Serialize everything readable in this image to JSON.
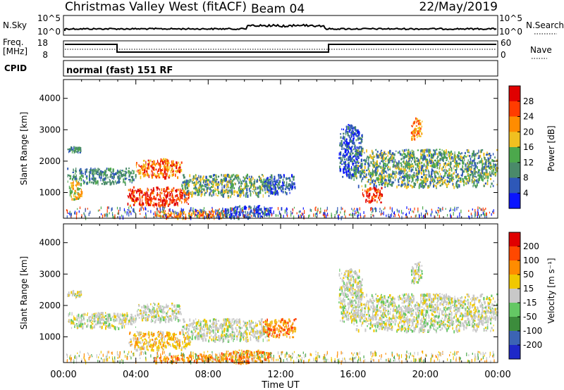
{
  "header": {
    "station": "Christmas Valley West (fitACF)",
    "beam": "Beam 04",
    "date": "22/May/2019"
  },
  "noise_panel": {
    "left_label": "N.Sky",
    "left_ticks": [
      "10^5",
      "10^0"
    ],
    "right_label": "N.Search",
    "right_ticks": [
      "10^5",
      "10^0"
    ]
  },
  "freq_panel": {
    "left_label_1": "Freq.",
    "left_label_2": "[MHz]",
    "left_ticks": [
      "18",
      "8"
    ],
    "right_label": "Nave",
    "right_ticks": [
      "60",
      "0"
    ]
  },
  "cpid": {
    "label": "CPID",
    "mode": "normal (fast) 151 RF"
  },
  "x_axis": {
    "label": "Time UT",
    "ticks": [
      "00:00",
      "04:00",
      "08:00",
      "12:00",
      "16:00",
      "20:00",
      "00:00"
    ]
  },
  "chart_data": [
    {
      "type": "heatmap",
      "title": "",
      "xlabel": "Time UT",
      "ylabel": "Slant Range [km]",
      "x_unit": "hours UT",
      "xlim": [
        0,
        24
      ],
      "ylim": [
        180,
        4600
      ],
      "y_ticks": [
        1000,
        2000,
        3000,
        4000
      ],
      "colorbar": {
        "label": "Power [dB]",
        "ticks": [
          "4",
          "8",
          "12",
          "16",
          "20",
          "24",
          "28"
        ],
        "colors": [
          "#0a14ff",
          "#2e58b8",
          "#4a8a6a",
          "#4ca84c",
          "#f0c020",
          "#ff8c00",
          "#ff3c00",
          "#e00000"
        ]
      },
      "regions": [
        {
          "t0": 0.2,
          "t1": 4.0,
          "r0": 1300,
          "r1": 1800,
          "level": "blue-green"
        },
        {
          "t0": 0.2,
          "t1": 1.0,
          "r0": 2300,
          "r1": 2500,
          "level": "blue-green"
        },
        {
          "t0": 0.3,
          "t1": 1.0,
          "r0": 800,
          "r1": 1400,
          "level": "yellow"
        },
        {
          "t0": 4.0,
          "t1": 6.5,
          "r0": 1500,
          "r1": 2100,
          "level": "orange-red"
        },
        {
          "t0": 3.5,
          "t1": 7.0,
          "r0": 600,
          "r1": 1200,
          "level": "red"
        },
        {
          "t0": 6.5,
          "t1": 11.5,
          "r0": 900,
          "r1": 1600,
          "level": "green"
        },
        {
          "t0": 11.0,
          "t1": 12.8,
          "r0": 1000,
          "r1": 1600,
          "level": "blue"
        },
        {
          "t0": 5.0,
          "t1": 9.0,
          "r0": 200,
          "r1": 450,
          "level": "orange"
        },
        {
          "t0": 8.5,
          "t1": 11.5,
          "r0": 200,
          "r1": 600,
          "level": "blue"
        },
        {
          "t0": 15.2,
          "t1": 16.5,
          "r0": 1500,
          "r1": 3200,
          "level": "blue"
        },
        {
          "t0": 16.0,
          "t1": 24.0,
          "r0": 1200,
          "r1": 2400,
          "level": "green-yellow"
        },
        {
          "t0": 16.5,
          "t1": 17.6,
          "r0": 700,
          "r1": 1200,
          "level": "red"
        },
        {
          "t0": 19.2,
          "t1": 19.8,
          "r0": 2700,
          "r1": 3400,
          "level": "orange"
        }
      ]
    },
    {
      "type": "heatmap",
      "title": "",
      "xlabel": "Time UT",
      "ylabel": "Slant Range [km]",
      "x_unit": "hours UT",
      "xlim": [
        0,
        24
      ],
      "ylim": [
        180,
        4600
      ],
      "y_ticks": [
        1000,
        2000,
        3000,
        4000
      ],
      "colorbar": {
        "label": "Velocity [m s⁻¹]",
        "ticks": [
          "200",
          "100",
          "50",
          "15",
          "-15",
          "-50",
          "-100",
          "-200"
        ],
        "colors": [
          "#1e28c8",
          "#3c64b4",
          "#3c8c3c",
          "#64c864",
          "#c8c8c8",
          "#f0c800",
          "#ff8c00",
          "#ff4800",
          "#e00000"
        ]
      },
      "regions": [
        {
          "t0": 0.2,
          "t1": 4.0,
          "r0": 1300,
          "r1": 1800,
          "level": "grey"
        },
        {
          "t0": 0.2,
          "t1": 1.0,
          "r0": 2300,
          "r1": 2500,
          "level": "grey"
        },
        {
          "t0": 4.0,
          "t1": 6.5,
          "r0": 1500,
          "r1": 2100,
          "level": "grey"
        },
        {
          "t0": 3.5,
          "t1": 7.0,
          "r0": 600,
          "r1": 1200,
          "level": "yellow-orange"
        },
        {
          "t0": 6.5,
          "t1": 11.5,
          "r0": 900,
          "r1": 1600,
          "level": "grey"
        },
        {
          "t0": 11.0,
          "t1": 12.8,
          "r0": 1000,
          "r1": 1600,
          "level": "orange"
        },
        {
          "t0": 5.0,
          "t1": 9.0,
          "r0": 200,
          "r1": 450,
          "level": "orange"
        },
        {
          "t0": 8.5,
          "t1": 11.5,
          "r0": 200,
          "r1": 600,
          "level": "orange"
        },
        {
          "t0": 15.2,
          "t1": 16.5,
          "r0": 1500,
          "r1": 3200,
          "level": "grey"
        },
        {
          "t0": 16.0,
          "t1": 24.0,
          "r0": 1200,
          "r1": 2400,
          "level": "grey"
        },
        {
          "t0": 19.2,
          "t1": 19.8,
          "r0": 2700,
          "r1": 3400,
          "level": "grey"
        }
      ]
    }
  ]
}
